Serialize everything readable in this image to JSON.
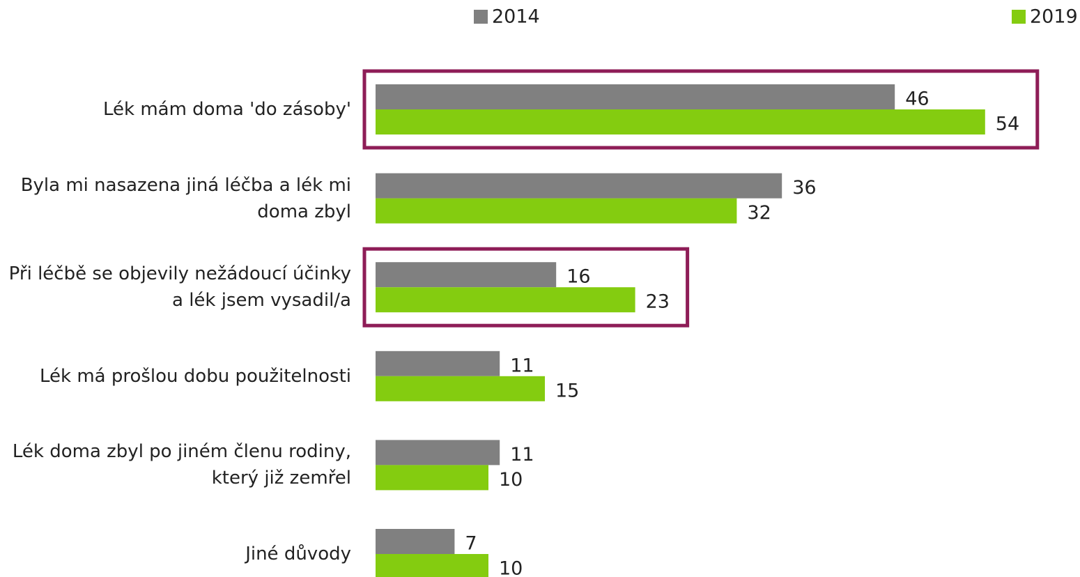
{
  "chart_data": {
    "type": "hbar",
    "categories": [
      "Lék mám doma 'do zásoby'",
      "Byla mi nasazena jiná léčba a lék mi doma zbyl",
      "Při léčbě se objevily nežádoucí účinky a lék jsem vysadil/a",
      "Lék má prošlou dobu použitelnosti",
      "Lék doma zbyl po jiném členu rodiny, který již zemřel",
      "Jiné důvody"
    ],
    "series": [
      {
        "name": "2014",
        "color": "#808080",
        "values": [
          46,
          36,
          16,
          11,
          11,
          7
        ]
      },
      {
        "name": "2019",
        "color": "#84cc10",
        "values": [
          54,
          32,
          23,
          15,
          10,
          10
        ]
      }
    ],
    "highlight": [
      0,
      2
    ],
    "highlight_color": "#8e1d57"
  }
}
